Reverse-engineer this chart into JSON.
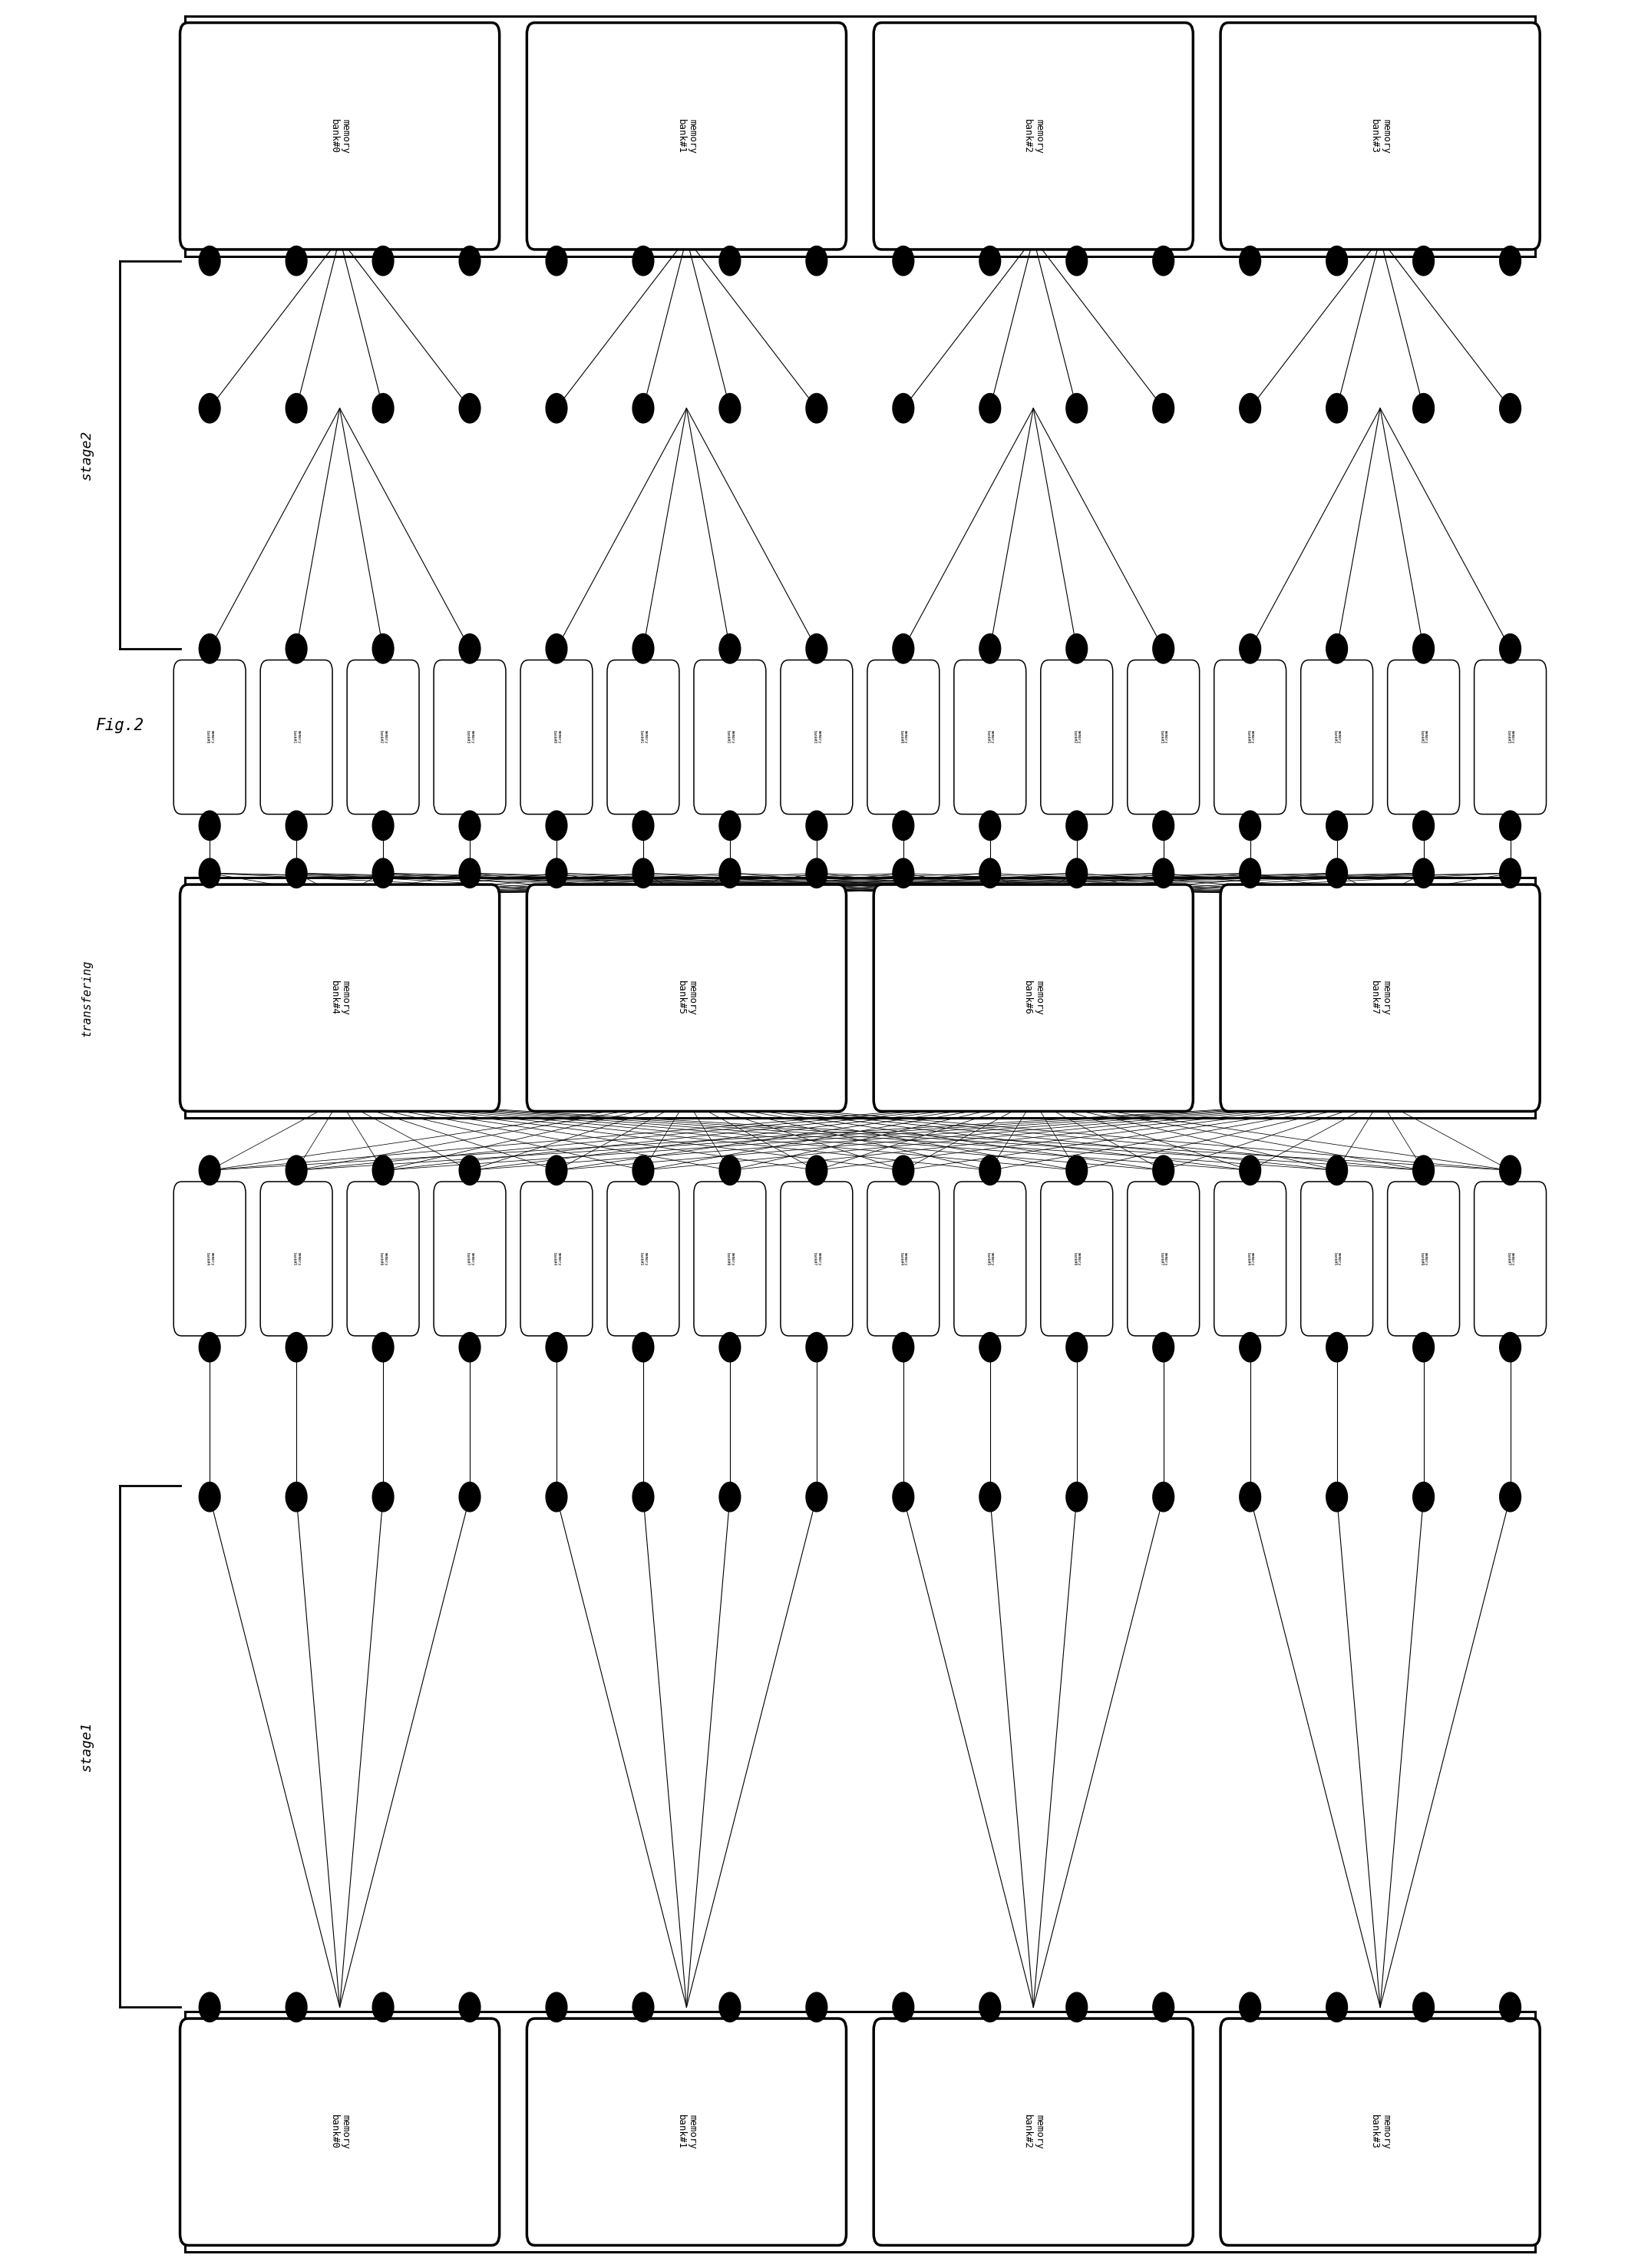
{
  "bg_color": "#ffffff",
  "line_color": "#000000",
  "title": "Fig.2",
  "label_transfering": "transfering",
  "label_stage1": "stage1",
  "label_stage2": "stage2",
  "stage1_bottom_labels": [
    "memory\nbank#0",
    "memory\nbank#1",
    "memory\nbank#2",
    "memory\nbank#3"
  ],
  "transfer_large_labels": [
    "memory\nbank#4",
    "memory\nbank#5",
    "memory\nbank#6",
    "memory\nbank#7"
  ],
  "stage2_top_labels": [
    "memory\nbank#0",
    "memory\nbank#1",
    "memory\nbank#2",
    "memory\nbank#3"
  ],
  "small_labels_bot4": [
    "memory\nbank#4",
    "memory\nbank#5",
    "memory\nbank#6",
    "memory\nbank#7"
  ],
  "small_labels_top4": [
    "memory\nbank#0",
    "memory\nbank#1",
    "memory\nbank#2",
    "memory\nbank#3"
  ]
}
